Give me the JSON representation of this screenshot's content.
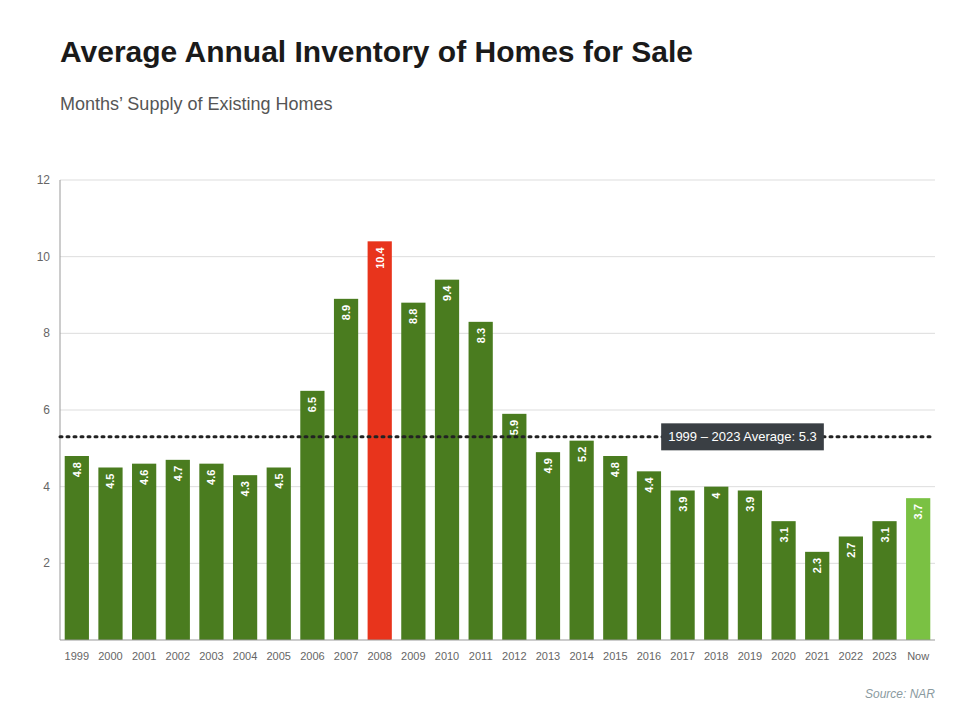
{
  "chart_data": {
    "type": "bar",
    "title": "Average Annual  Inventory of Homes for Sale",
    "subtitle": "Months’ Supply of Existing Homes",
    "source": "Source: NAR",
    "categories": [
      "1999",
      "2000",
      "2001",
      "2002",
      "2003",
      "2004",
      "2005",
      "2006",
      "2007",
      "2008",
      "2009",
      "2010",
      "2011",
      "2012",
      "2013",
      "2014",
      "2015",
      "2016",
      "2017",
      "2018",
      "2019",
      "2020",
      "2021",
      "2022",
      "2023",
      "Now"
    ],
    "values": [
      4.8,
      4.5,
      4.6,
      4.7,
      4.6,
      4.3,
      4.5,
      6.5,
      8.9,
      10.4,
      8.8,
      9.4,
      8.3,
      5.9,
      4.9,
      5.2,
      4.8,
      4.4,
      3.9,
      4.0,
      3.9,
      3.1,
      2.3,
      2.7,
      3.1,
      3.7
    ],
    "colors": [
      "#4a7c1f",
      "#4a7c1f",
      "#4a7c1f",
      "#4a7c1f",
      "#4a7c1f",
      "#4a7c1f",
      "#4a7c1f",
      "#4a7c1f",
      "#4a7c1f",
      "#e8341c",
      "#4a7c1f",
      "#4a7c1f",
      "#4a7c1f",
      "#4a7c1f",
      "#4a7c1f",
      "#4a7c1f",
      "#4a7c1f",
      "#4a7c1f",
      "#4a7c1f",
      "#4a7c1f",
      "#4a7c1f",
      "#4a7c1f",
      "#4a7c1f",
      "#4a7c1f",
      "#4a7c1f",
      "#7ac143"
    ],
    "annotations": [
      {
        "text": "1999 – 2023 Average:  5.3",
        "y": 5.3
      }
    ],
    "ylim": [
      0,
      12
    ],
    "yticks": [
      2,
      4,
      6,
      8,
      10,
      12
    ],
    "grid": true,
    "data_labels": true
  }
}
